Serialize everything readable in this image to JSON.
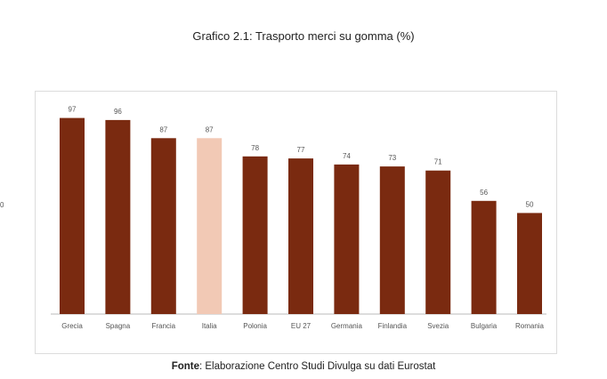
{
  "chart_title": "Grafico 2.1: Trasporto merci su gomma (%)",
  "edge_label": "0",
  "source": {
    "label": "Fonte",
    "text": ": Elaborazione Centro Studi Divulga su dati Eurostat"
  },
  "colors": {
    "bar": "#7a2a10",
    "highlight": "#f2c9b5",
    "baseline": "#bbbbbb",
    "label": "#555555"
  },
  "chart_data": {
    "type": "bar",
    "categories": [
      "Grecia",
      "Spagna",
      "Francia",
      "Italia",
      "Polonia",
      "EU 27",
      "Germania",
      "Finlandia",
      "Svezia",
      "Bulgaria",
      "Romania"
    ],
    "values": [
      97,
      96,
      87,
      87,
      78,
      77,
      74,
      73,
      71,
      56,
      50
    ],
    "data_labels": [
      "97",
      "96",
      "87",
      "87",
      "78",
      "77",
      "74",
      "73",
      "71",
      "56",
      "50"
    ],
    "highlight_category": "Italia",
    "title": "Grafico 2.1: Trasporto merci su gomma (%)",
    "xlabel": "",
    "ylabel": "",
    "ylim": [
      0,
      100
    ],
    "grid": false,
    "legend": "none"
  }
}
